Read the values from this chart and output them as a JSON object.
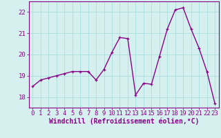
{
  "x": [
    0,
    1,
    2,
    3,
    4,
    5,
    6,
    7,
    8,
    9,
    10,
    11,
    12,
    13,
    14,
    15,
    16,
    17,
    18,
    19,
    20,
    21,
    22,
    23
  ],
  "y": [
    18.5,
    18.8,
    18.9,
    19.0,
    19.1,
    19.2,
    19.2,
    19.2,
    18.8,
    19.3,
    20.1,
    20.8,
    20.75,
    18.1,
    18.65,
    18.6,
    19.9,
    21.2,
    22.1,
    22.2,
    21.2,
    20.3,
    19.2,
    17.7
  ],
  "line_color": "#880088",
  "marker": "+",
  "bg_color": "#d6f0f0",
  "grid_color": "#aadddd",
  "xlabel": "Windchill (Refroidissement éolien,°C)",
  "ylabel_ticks": [
    18,
    19,
    20,
    21,
    22
  ],
  "xtick_labels": [
    "0",
    "1",
    "2",
    "3",
    "4",
    "5",
    "6",
    "7",
    "8",
    "9",
    "10",
    "11",
    "12",
    "13",
    "14",
    "15",
    "16",
    "17",
    "18",
    "19",
    "20",
    "21",
    "22",
    "23"
  ],
  "xlim": [
    -0.5,
    23.5
  ],
  "ylim": [
    17.5,
    22.5
  ],
  "tick_color": "#880088",
  "label_color": "#880088",
  "axis_color": "#880088",
  "font_size_ticks": 6.5,
  "font_size_xlabel": 7,
  "line_width": 1.0,
  "marker_size": 3.5
}
